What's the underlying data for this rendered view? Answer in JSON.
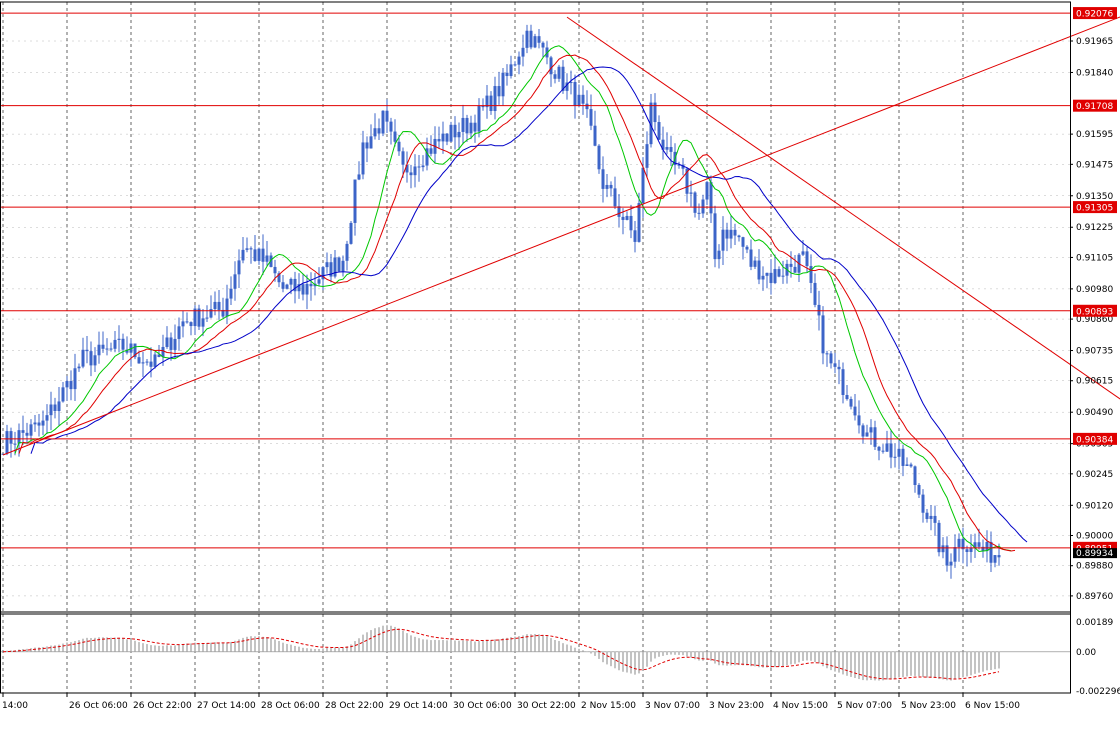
{
  "chart_data": {
    "type": "line",
    "chart_kind": "candlestick",
    "title": "",
    "xlabel": "",
    "ylabel": "",
    "grid": true,
    "colors": {
      "candles": "#3c64c8",
      "ma_fast": "#00c800",
      "ma_mid": "#e00000",
      "ma_slow": "#0000c8",
      "levels": "#e00000",
      "trendlines": "#e00000",
      "oscillator_bars": "#b4b4b4",
      "oscillator_signal": "#e00000",
      "grid": "#000000"
    },
    "price_axis": {
      "ylim": [
        0.897,
        0.9212
      ],
      "tick_labels": [
        "0.91965",
        "0.91840",
        "0.91595",
        "0.91475",
        "0.91350",
        "0.91225",
        "0.91105",
        "0.90980",
        "0.90860",
        "0.90735",
        "0.90615",
        "0.90490",
        "0.90365",
        "0.90245",
        "0.90120",
        "0.90000",
        "0.89880",
        "0.89760"
      ],
      "current_price": "0.89934"
    },
    "time_axis": {
      "tick_labels": [
        "14:00",
        "26 Oct 06:00",
        "26 Oct 22:00",
        "27 Oct 14:00",
        "28 Oct 06:00",
        "28 Oct 22:00",
        "29 Oct 14:00",
        "30 Oct 06:00",
        "30 Oct 22:00",
        "2 Nov 15:00",
        "3 Nov 07:00",
        "3 Nov 23:00",
        "4 Nov 15:00",
        "5 Nov 07:00",
        "5 Nov 23:00",
        "6 Nov 15:00"
      ],
      "bar_count": 250
    },
    "horizontal_levels": [
      {
        "value": 0.92076,
        "label": "0.92076"
      },
      {
        "value": 0.91708,
        "label": "0.91708"
      },
      {
        "value": 0.91305,
        "label": "0.91305"
      },
      {
        "value": 0.90893,
        "label": "0.90893"
      },
      {
        "value": 0.90384,
        "label": "0.90384"
      },
      {
        "value": 0.89951,
        "label": "0.89951"
      }
    ],
    "trendlines": [
      {
        "name": "support",
        "x": [
          0,
          284
        ],
        "y": [
          0.9032,
          0.9209
        ]
      },
      {
        "name": "resistance",
        "x": [
          141,
          285
        ],
        "y": [
          0.9206,
          0.9048
        ]
      }
    ],
    "price_path": {
      "x": [
        0,
        10,
        20,
        30,
        38,
        45,
        55,
        60,
        66,
        70,
        75,
        85,
        90,
        95,
        100,
        110,
        118,
        123,
        126,
        131,
        136,
        140,
        143,
        146,
        150,
        158,
        162,
        166,
        170,
        174,
        176,
        178,
        180,
        184,
        187,
        192,
        200,
        206,
        212,
        216,
        221,
        227,
        232,
        236,
        238,
        242,
        246
      ],
      "y": [
        0.9037,
        0.9044,
        0.907,
        0.9075,
        0.9068,
        0.9085,
        0.909,
        0.9115,
        0.9108,
        0.9098,
        0.9098,
        0.911,
        0.9155,
        0.9165,
        0.9145,
        0.9158,
        0.9165,
        0.9175,
        0.9182,
        0.92,
        0.919,
        0.918,
        0.9175,
        0.9165,
        0.914,
        0.9118,
        0.917,
        0.915,
        0.9142,
        0.9128,
        0.9138,
        0.911,
        0.9122,
        0.9118,
        0.9108,
        0.9103,
        0.911,
        0.907,
        0.9055,
        0.904,
        0.9035,
        0.9025,
        0.9005,
        0.8988,
        0.8998,
        0.8997,
        0.8993
      ]
    },
    "oscillator": {
      "tick_labels": [
        "0.00189",
        "0.00",
        "-0.002296"
      ],
      "ylim": [
        -0.0024,
        0.0022
      ]
    }
  }
}
